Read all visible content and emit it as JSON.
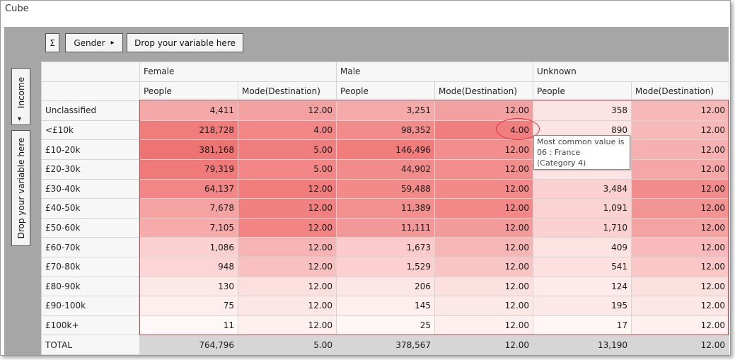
{
  "window": {
    "title": "Cube"
  },
  "toolbar": {
    "sigma_label": "Σ",
    "col_var": "Gender",
    "col_arrow": "▸",
    "col_drop": "Drop your variable here"
  },
  "rowbar": {
    "row_var": "Income",
    "row_arrow": "▾",
    "row_drop": "Drop your variable here"
  },
  "header": {
    "groups": [
      "Female",
      "Male",
      "Unknown"
    ],
    "measures": [
      "People",
      "Mode(Destination)",
      "People",
      "Mode(Destination)",
      "People",
      "Mode(Destination)"
    ]
  },
  "rows": [
    {
      "label": "Unclassified",
      "cells": [
        "4,411",
        "12.00",
        "3,251",
        "12.00",
        "358",
        "12.00"
      ]
    },
    {
      "label": "<£10k",
      "cells": [
        "218,728",
        "4.00",
        "98,352",
        "4.00",
        "890",
        "12.00"
      ]
    },
    {
      "label": "£10-20k",
      "cells": [
        "381,168",
        "5.00",
        "146,496",
        "12.00",
        "",
        "12.00"
      ]
    },
    {
      "label": "£20-30k",
      "cells": [
        "79,319",
        "5.00",
        "44,902",
        "12.00",
        "",
        "12.00"
      ]
    },
    {
      "label": "£30-40k",
      "cells": [
        "64,137",
        "12.00",
        "59,488",
        "12.00",
        "3,484",
        "12.00"
      ]
    },
    {
      "label": "£40-50k",
      "cells": [
        "7,678",
        "12.00",
        "11,389",
        "12.00",
        "1,091",
        "12.00"
      ]
    },
    {
      "label": "£50-60k",
      "cells": [
        "7,105",
        "12.00",
        "11,111",
        "12.00",
        "1,710",
        "12.00"
      ]
    },
    {
      "label": "£60-70k",
      "cells": [
        "1,086",
        "12.00",
        "1,673",
        "12.00",
        "409",
        "12.00"
      ]
    },
    {
      "label": "£70-80k",
      "cells": [
        "948",
        "12.00",
        "1,529",
        "12.00",
        "541",
        "12.00"
      ]
    },
    {
      "label": "£80-90k",
      "cells": [
        "130",
        "12.00",
        "206",
        "12.00",
        "124",
        "12.00"
      ]
    },
    {
      "label": "£90-100k",
      "cells": [
        "75",
        "12.00",
        "145",
        "12.00",
        "195",
        "12.00"
      ]
    },
    {
      "label": "£100k+",
      "cells": [
        "11",
        "12.00",
        "25",
        "12.00",
        "17",
        "12.00"
      ]
    }
  ],
  "total": {
    "label": "TOTAL",
    "cells": [
      "764,796",
      "5.00",
      "378,567",
      "12.00",
      "13,190",
      "12.00"
    ]
  },
  "heat": [
    [
      "#f5a8a8",
      "#f2a0a0",
      "#f5aaaa",
      "#f2a0a0",
      "#fde4e4",
      "#f7b8b8"
    ],
    [
      "#f07c7c",
      "#f28686",
      "#f28c8c",
      "#f17e7e",
      "#fde4e4",
      "#f7b8b8"
    ],
    [
      "#ee7373",
      "#f07e7e",
      "#f07c7c",
      "#f28e8e",
      "#fde4e4",
      "#f6b0b0"
    ],
    [
      "#f07a7a",
      "#f28686",
      "#f28c8c",
      "#f28e8e",
      "#fde4e4",
      "#f5a6a6"
    ],
    [
      "#f28686",
      "#f07c7c",
      "#f28a8a",
      "#f28a8a",
      "#fbd0d0",
      "#f28c8c"
    ],
    [
      "#f5a2a2",
      "#f18080",
      "#f29090",
      "#f28888",
      "#fbd2d2",
      "#f39494"
    ],
    [
      "#f6aaaa",
      "#f28484",
      "#f39898",
      "#f39a9a",
      "#fbd0d0",
      "#f4a2a2"
    ],
    [
      "#fad0d0",
      "#f7b4b4",
      "#fbcaca",
      "#f7b6b6",
      "#fde2e2",
      "#f8baba"
    ],
    [
      "#fcd6d6",
      "#f9c0c0",
      "#fcd0d0",
      "#f9c4c4",
      "#fde0e0",
      "#fac6c6"
    ],
    [
      "#fde8e8",
      "#fce0e0",
      "#fde6e6",
      "#fce0e0",
      "#feeaea",
      "#fce0e0"
    ],
    [
      "#feeeee",
      "#fde6e6",
      "#feeeee",
      "#fde8e8",
      "#fde8e8",
      "#fde6e6"
    ],
    [
      "#fff8f8",
      "#fff0f0",
      "#fff6f6",
      "#fff0f0",
      "#fff6f6",
      "#fff0f0"
    ]
  ],
  "tooltip": {
    "lines": [
      "Most common value is",
      "06 : France",
      "(Category 4)"
    ]
  }
}
